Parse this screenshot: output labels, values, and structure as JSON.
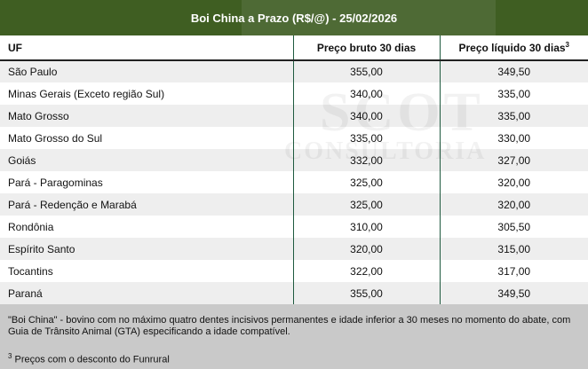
{
  "title": "Boi China a Prazo (R$/@) - 25/02/2026",
  "colors": {
    "header": "#3f5e22",
    "header_band": "#4e6a35",
    "row_alt": "#eeeeee",
    "footer": "#c9c9c9",
    "column_divider": "#1f5a3f"
  },
  "watermark": {
    "line1": "SCOT",
    "line2": "CONSULTORIA"
  },
  "table": {
    "headers": {
      "uf": "UF",
      "bruto": "Preço bruto 30 dias",
      "liquido": "Preço líquido 30 dias",
      "liquido_sup": "3"
    },
    "rows": [
      {
        "uf": "São Paulo",
        "bruto": "355,00",
        "liquido": "349,50"
      },
      {
        "uf": "Minas Gerais (Exceto região Sul)",
        "bruto": "340,00",
        "liquido": "335,00"
      },
      {
        "uf": "Mato Grosso",
        "bruto": "340,00",
        "liquido": "335,00"
      },
      {
        "uf": "Mato Grosso do Sul",
        "bruto": "335,00",
        "liquido": "330,00"
      },
      {
        "uf": "Goiás",
        "bruto": "332,00",
        "liquido": "327,00"
      },
      {
        "uf": "Pará - Paragominas",
        "bruto": "325,00",
        "liquido": "320,00"
      },
      {
        "uf": "Pará - Redenção e Marabá",
        "bruto": "325,00",
        "liquido": "320,00"
      },
      {
        "uf": "Rondônia",
        "bruto": "310,00",
        "liquido": "305,50"
      },
      {
        "uf": "Espírito Santo",
        "bruto": "320,00",
        "liquido": "315,00"
      },
      {
        "uf": "Tocantins",
        "bruto": "322,00",
        "liquido": "317,00"
      },
      {
        "uf": "Paraná",
        "bruto": "355,00",
        "liquido": "349,50"
      }
    ]
  },
  "footer": {
    "definition": "\"Boi China\" - bovino com no máximo quatro dentes incisivos permanentes e idade inferior a 30 meses no momento do abate, com Guia de Trânsito Animal (GTA) especificando a idade compatível.",
    "note_sup": "3",
    "note": " Preços com o desconto do Funrural"
  }
}
